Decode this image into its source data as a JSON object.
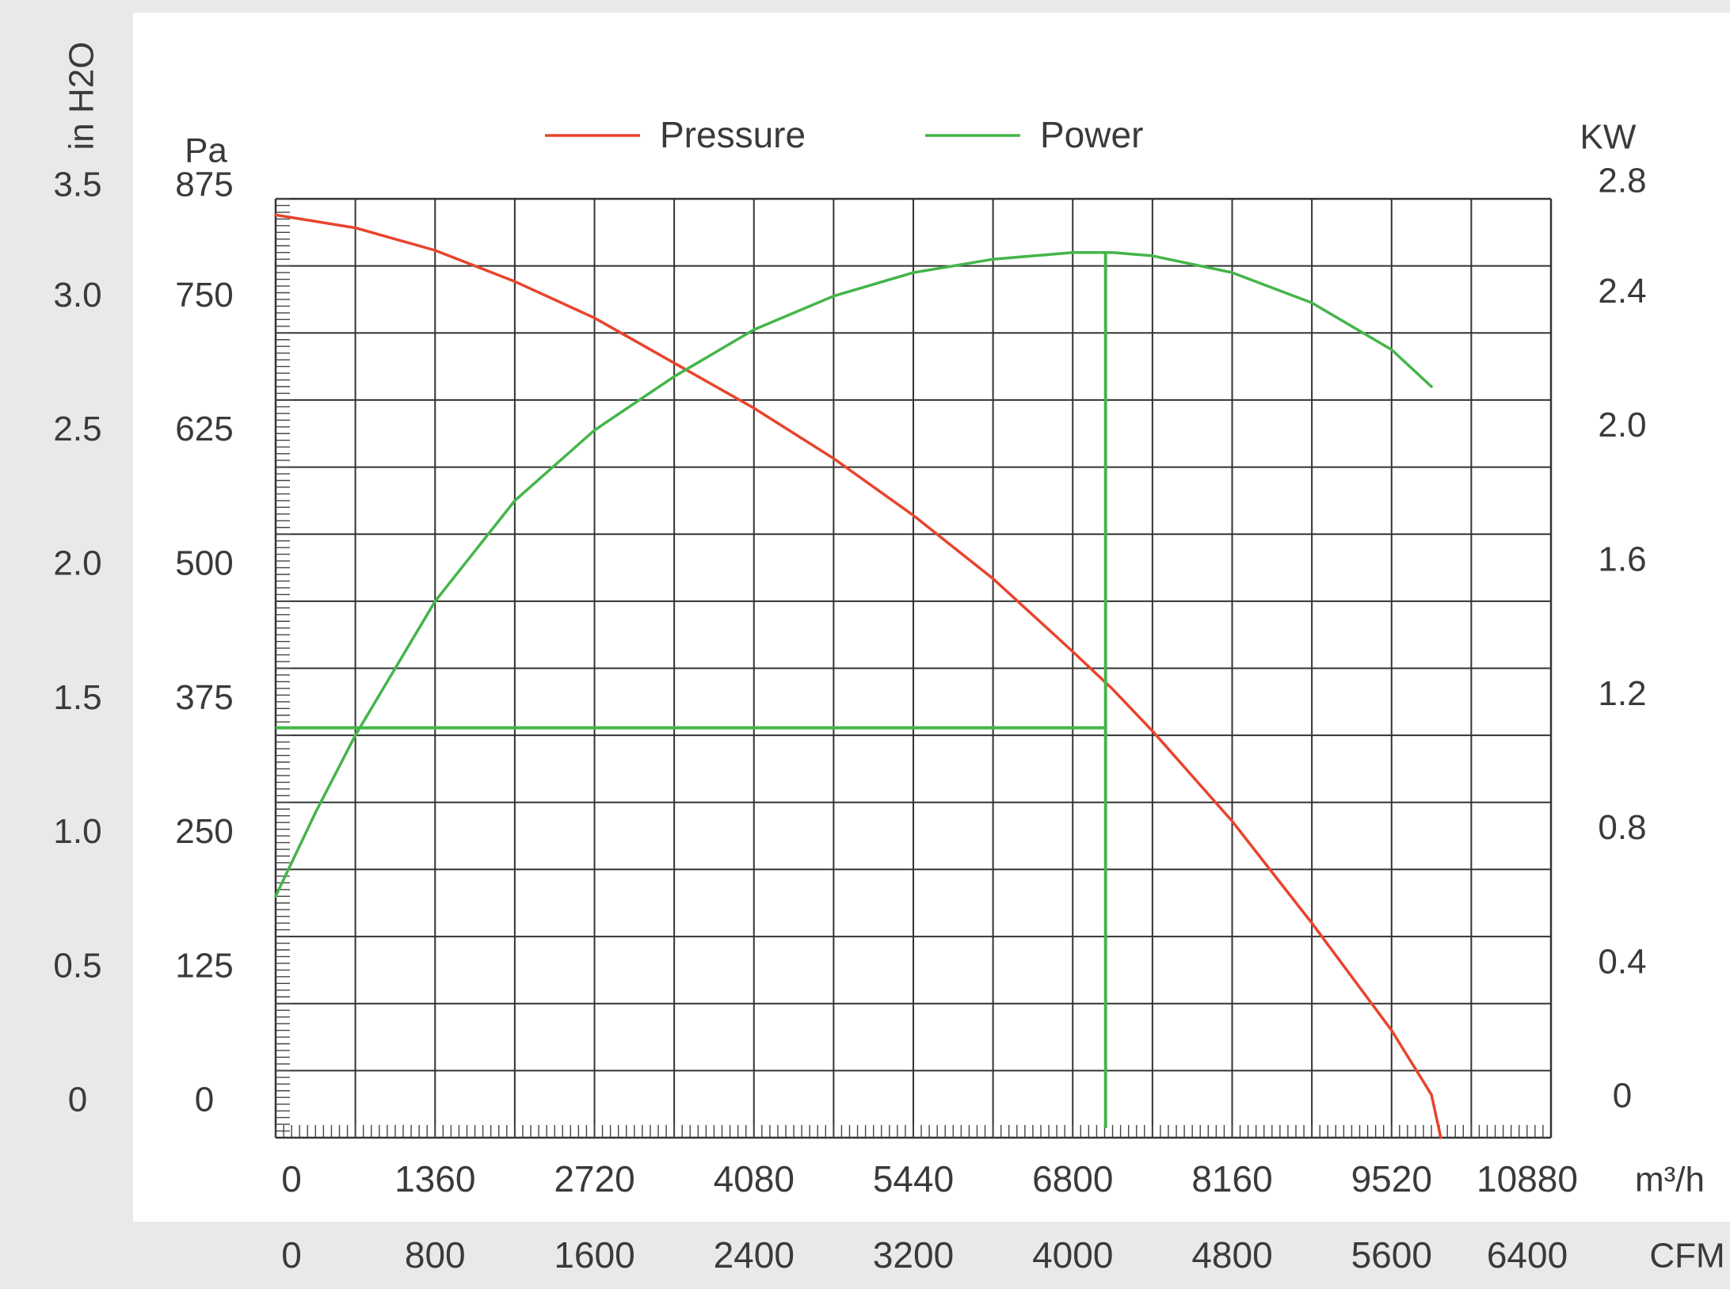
{
  "chart_data": {
    "type": "line",
    "legend_position": "top",
    "grid": true,
    "left_outer_axis": {
      "unit_label": "in H2O",
      "ticks": [
        "3.5",
        "3.0",
        "2.5",
        "2.0",
        "1.5",
        "1.0",
        "0.5",
        "0"
      ],
      "ylim": [
        0,
        3.5
      ]
    },
    "left_axis": {
      "unit_label": "Pa",
      "ticks": [
        "875",
        "750",
        "625",
        "500",
        "375",
        "250",
        "125",
        "0"
      ],
      "ylim": [
        0,
        875
      ]
    },
    "right_axis": {
      "unit_label": "KW",
      "ticks": [
        "2.8",
        "2.4",
        "2.0",
        "1.6",
        "1.2",
        "0.8",
        "0.4",
        "0"
      ],
      "ylim": [
        0,
        2.8
      ]
    },
    "x_axis": {
      "unit_label": "m³/h",
      "ticks": [
        "0",
        "1360",
        "2720",
        "4080",
        "5440",
        "6800",
        "8160",
        "9520",
        "10880"
      ],
      "xlim": [
        0,
        10880
      ]
    },
    "x_axis_secondary": {
      "unit_label": "CFM",
      "ticks": [
        "0",
        "800",
        "1600",
        "2400",
        "3200",
        "4000",
        "4800",
        "5600",
        "6400"
      ],
      "xlim": [
        0,
        6400
      ]
    },
    "series": [
      {
        "name": "Pressure",
        "axis": "left",
        "color": "#e8442c",
        "x": [
          0,
          680,
          1360,
          2040,
          2720,
          3400,
          4080,
          4760,
          5440,
          6120,
          6800,
          7140,
          7480,
          8160,
          8840,
          9520,
          9860,
          9940
        ],
        "y": [
          860,
          848,
          827,
          798,
          764,
          722,
          680,
          633,
          580,
          521,
          453,
          418,
          379,
          295,
          200,
          100,
          40,
          0
        ]
      },
      {
        "name": "Power",
        "axis": "right",
        "color": "#44b54a",
        "x": [
          0,
          340,
          680,
          1360,
          2040,
          2720,
          3400,
          4080,
          4760,
          5440,
          6120,
          6800,
          7140,
          7480,
          8160,
          8840,
          9520,
          9860
        ],
        "y": [
          0.72,
          0.97,
          1.2,
          1.6,
          1.9,
          2.11,
          2.27,
          2.41,
          2.51,
          2.58,
          2.62,
          2.64,
          2.64,
          2.63,
          2.58,
          2.49,
          2.35,
          2.24
        ]
      }
    ],
    "operating_point": {
      "color": "#44b54a",
      "x": 7080,
      "pressure": 382,
      "power_peak": 2.64
    }
  }
}
